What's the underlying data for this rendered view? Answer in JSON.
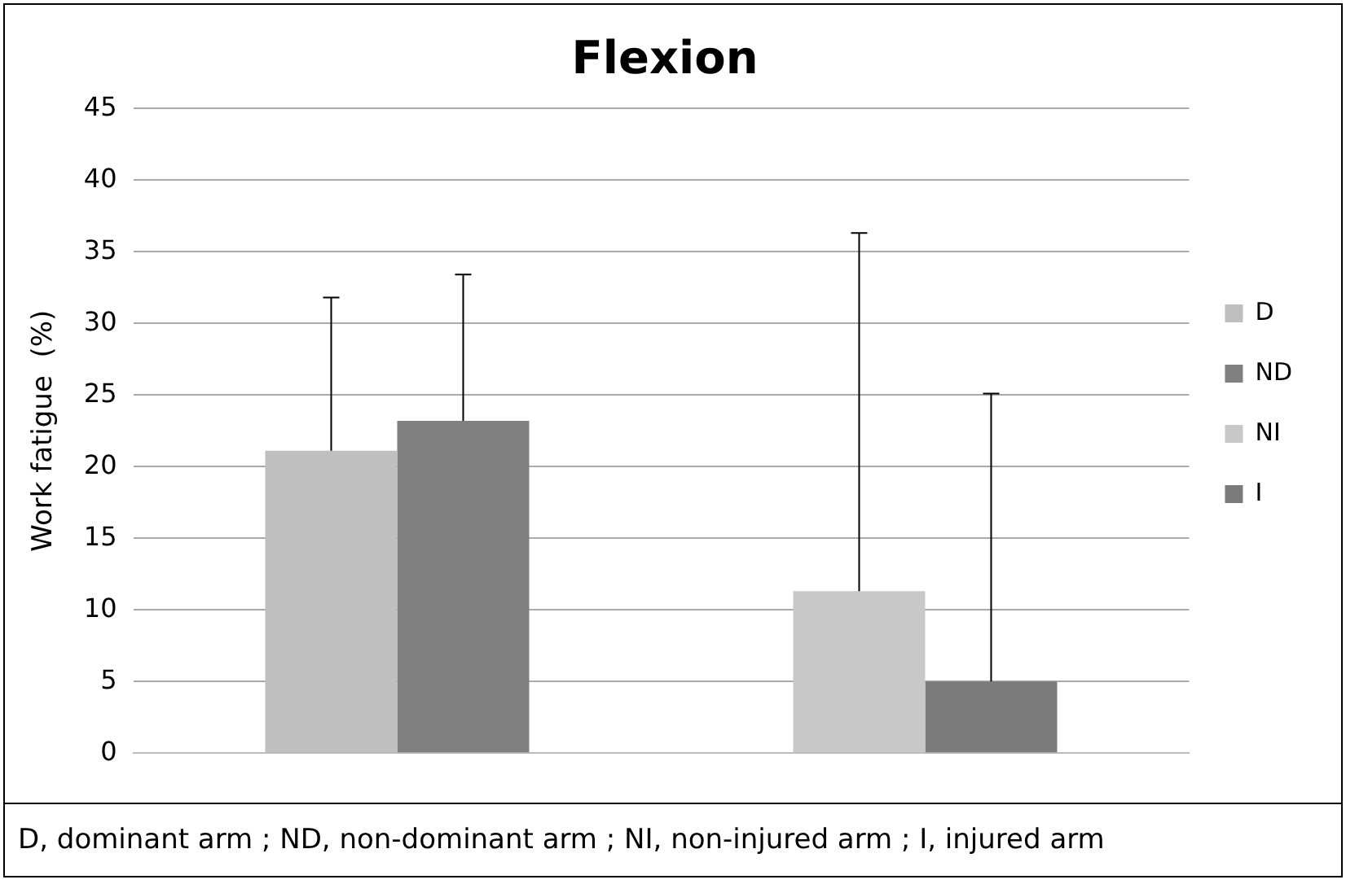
{
  "chart_data": {
    "type": "bar",
    "title": "Flexion",
    "ylabel": "Work fatigue  (%)",
    "categories": [
      null,
      null
    ],
    "series": [
      {
        "name": "D",
        "color": "#bfbfbf",
        "values": [
          21.1,
          null
        ],
        "errors": [
          [
            21.1,
            31.8
          ],
          null
        ]
      },
      {
        "name": "ND",
        "color": "#808080",
        "values": [
          23.2,
          null
        ],
        "errors": [
          [
            23.2,
            33.4
          ],
          null
        ]
      },
      {
        "name": "NI",
        "color": "#c8c8c8",
        "values": [
          null,
          11.3
        ],
        "errors": [
          null,
          [
            11.3,
            36.3
          ]
        ]
      },
      {
        "name": "I",
        "color": "#7a7a7a",
        "values": [
          null,
          5.0
        ],
        "errors": [
          null,
          [
            5.0,
            25.1
          ]
        ]
      }
    ],
    "ylim": [
      0,
      45
    ],
    "yticks": [
      0,
      5,
      10,
      15,
      20,
      25,
      30,
      35,
      40,
      45
    ],
    "grid": "y",
    "legend": "right",
    "annotations": [
      "D, dominant arm ; ND, non-dominant arm ; NI, non-injured arm ; I, injured arm"
    ]
  }
}
